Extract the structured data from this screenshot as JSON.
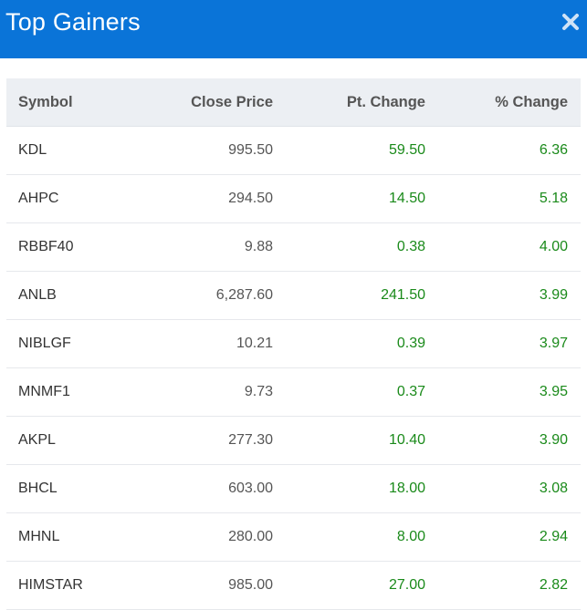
{
  "window": {
    "title": "Top Gainers",
    "close_icon": "close-icon"
  },
  "table": {
    "headers": {
      "symbol": "Symbol",
      "close_price": "Close Price",
      "pt_change": "Pt. Change",
      "pct_change": "% Change"
    },
    "rows": [
      {
        "symbol": "KDL",
        "close_price": "995.50",
        "pt_change": "59.50",
        "pct_change": "6.36"
      },
      {
        "symbol": "AHPC",
        "close_price": "294.50",
        "pt_change": "14.50",
        "pct_change": "5.18"
      },
      {
        "symbol": "RBBF40",
        "close_price": "9.88",
        "pt_change": "0.38",
        "pct_change": "4.00"
      },
      {
        "symbol": "ANLB",
        "close_price": "6,287.60",
        "pt_change": "241.50",
        "pct_change": "3.99"
      },
      {
        "symbol": "NIBLGF",
        "close_price": "10.21",
        "pt_change": "0.39",
        "pct_change": "3.97"
      },
      {
        "symbol": "MNMF1",
        "close_price": "9.73",
        "pt_change": "0.37",
        "pct_change": "3.95"
      },
      {
        "symbol": "AKPL",
        "close_price": "277.30",
        "pt_change": "10.40",
        "pct_change": "3.90"
      },
      {
        "symbol": "BHCL",
        "close_price": "603.00",
        "pt_change": "18.00",
        "pct_change": "3.08"
      },
      {
        "symbol": "MHNL",
        "close_price": "280.00",
        "pt_change": "8.00",
        "pct_change": "2.94"
      },
      {
        "symbol": "HIMSTAR",
        "close_price": "985.00",
        "pt_change": "27.00",
        "pct_change": "2.82"
      }
    ]
  },
  "colors": {
    "header_bg": "#0a74d8",
    "positive": "#1a8a1a"
  }
}
